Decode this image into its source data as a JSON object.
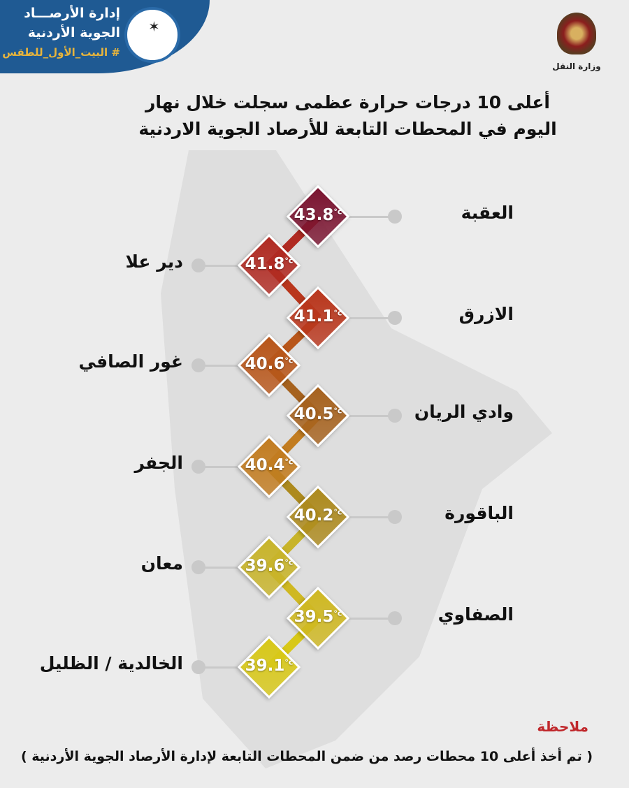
{
  "header": {
    "org_line1": "إدارة الأرصـــاد",
    "org_line2": "الجوية الأردنية",
    "hashtag": "# البيت_الأول_للطقس",
    "ministry": "وزارة النقل"
  },
  "title": {
    "line1": "أعلى 10 درجات حرارة عظمى سجلت خلال نهار",
    "line2": "اليوم في المحطات التابعة للأرصاد الجوية الاردنية"
  },
  "unit": "°c",
  "stations": [
    {
      "name": "العقبة",
      "temp": "43.8",
      "color": "#7a1430"
    },
    {
      "name": "دير علا",
      "temp": "41.8",
      "color": "#b02a22"
    },
    {
      "name": "الازرق",
      "temp": "41.1",
      "color": "#b9361c"
    },
    {
      "name": "غور الصافي",
      "temp": "40.6",
      "color": "#b8561a"
    },
    {
      "name": "وادي الريان",
      "temp": "40.5",
      "color": "#a6621e"
    },
    {
      "name": "الجفر",
      "temp": "40.4",
      "color": "#c27c20"
    },
    {
      "name": "الباقورة",
      "temp": "40.2",
      "color": "#ad8a1e"
    },
    {
      "name": "معان",
      "temp": "39.6",
      "color": "#c8b42a"
    },
    {
      "name": "الصفاوي",
      "temp": "39.5",
      "color": "#cfb822"
    },
    {
      "name": "الخالدية / الظليل",
      "temp": "39.1",
      "color": "#d8c818"
    }
  ],
  "note": {
    "heading": "ملاحظة",
    "text": "( تم أخذ أعلى 10 محطات رصد من ضمن المحطات التابعة لإدارة الأرصاد الجوية الأردنية )"
  }
}
